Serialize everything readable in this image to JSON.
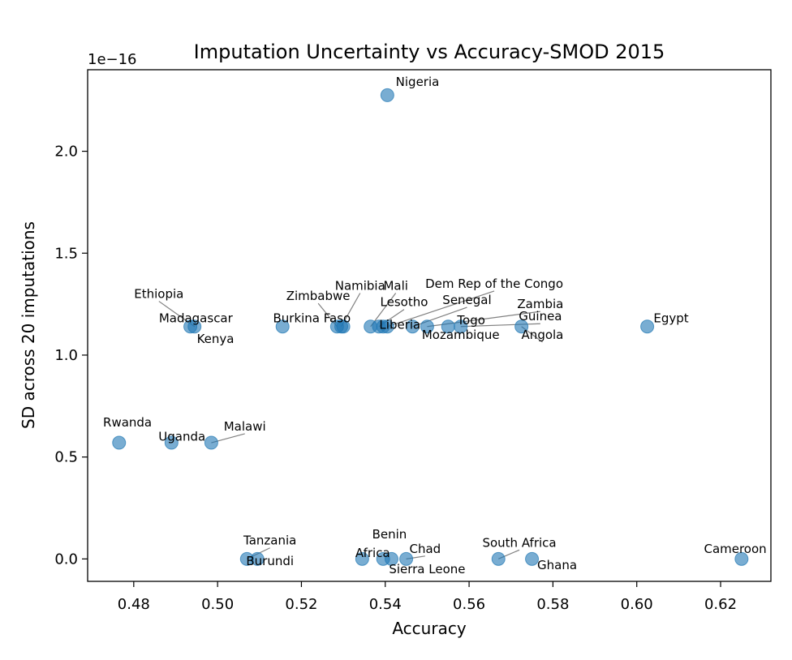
{
  "chart_data": {
    "type": "scatter",
    "title": "Imputation Uncertainty vs Accuracy-SMOD 2015",
    "xlabel": "Accuracy",
    "ylabel": "SD across 20 imputations",
    "y_offset_label": "1e−16",
    "xlim": [
      0.469,
      0.632
    ],
    "ylim": [
      -0.11,
      2.4
    ],
    "grid": false,
    "color": "#1f77b4",
    "xticks": [
      {
        "value": 0.48,
        "label": "0.48"
      },
      {
        "value": 0.5,
        "label": "0.50"
      },
      {
        "value": 0.52,
        "label": "0.52"
      },
      {
        "value": 0.54,
        "label": "0.54"
      },
      {
        "value": 0.56,
        "label": "0.56"
      },
      {
        "value": 0.58,
        "label": "0.58"
      },
      {
        "value": 0.6,
        "label": "0.60"
      },
      {
        "value": 0.62,
        "label": "0.62"
      }
    ],
    "yticks": [
      {
        "value": 0.0,
        "label": "0.0"
      },
      {
        "value": 0.5,
        "label": "0.5"
      },
      {
        "value": 1.0,
        "label": "1.0"
      },
      {
        "value": 1.5,
        "label": "1.5"
      },
      {
        "value": 2.0,
        "label": "2.0"
      }
    ],
    "points": [
      {
        "x": 0.5405,
        "y": 2.275
      },
      {
        "x": 0.4935,
        "y": 1.14
      },
      {
        "x": 0.4945,
        "y": 1.14
      },
      {
        "x": 0.5155,
        "y": 1.14
      },
      {
        "x": 0.5285,
        "y": 1.14
      },
      {
        "x": 0.5295,
        "y": 1.14
      },
      {
        "x": 0.53,
        "y": 1.14
      },
      {
        "x": 0.5365,
        "y": 1.14
      },
      {
        "x": 0.5385,
        "y": 1.14
      },
      {
        "x": 0.5395,
        "y": 1.14
      },
      {
        "x": 0.5405,
        "y": 1.14
      },
      {
        "x": 0.5465,
        "y": 1.14
      },
      {
        "x": 0.55,
        "y": 1.14
      },
      {
        "x": 0.555,
        "y": 1.14
      },
      {
        "x": 0.558,
        "y": 1.14
      },
      {
        "x": 0.5725,
        "y": 1.14
      },
      {
        "x": 0.6025,
        "y": 1.14
      },
      {
        "x": 0.4765,
        "y": 0.57
      },
      {
        "x": 0.489,
        "y": 0.57
      },
      {
        "x": 0.4985,
        "y": 0.57
      },
      {
        "x": 0.507,
        "y": 0.0
      },
      {
        "x": 0.5095,
        "y": 0.0
      },
      {
        "x": 0.5345,
        "y": 0.0
      },
      {
        "x": 0.5395,
        "y": 0.0
      },
      {
        "x": 0.5415,
        "y": 0.0
      },
      {
        "x": 0.545,
        "y": 0.0
      },
      {
        "x": 0.567,
        "y": 0.0
      },
      {
        "x": 0.575,
        "y": 0.0
      },
      {
        "x": 0.625,
        "y": 0.0
      }
    ],
    "labels": [
      {
        "text": "Nigeria",
        "x": 0.5425,
        "y": 2.32,
        "anchor": "start",
        "point": null
      },
      {
        "text": "Ethiopia",
        "x": 0.486,
        "y": 1.28,
        "anchor": "middle",
        "point": [
          0.4945,
          1.14
        ]
      },
      {
        "text": "Madagascar",
        "x": 0.486,
        "y": 1.16,
        "anchor": "start",
        "point": null
      },
      {
        "text": "Kenya",
        "x": 0.4995,
        "y": 1.06,
        "anchor": "middle",
        "point": null
      },
      {
        "text": "Burkina Faso",
        "x": 0.5225,
        "y": 1.16,
        "anchor": "middle",
        "point": null
      },
      {
        "text": "Zimbabwe",
        "x": 0.524,
        "y": 1.27,
        "anchor": "middle",
        "point": [
          0.5285,
          1.14
        ]
      },
      {
        "text": "Namibia",
        "x": 0.534,
        "y": 1.32,
        "anchor": "middle",
        "point": [
          0.5295,
          1.14
        ]
      },
      {
        "text": "Mali",
        "x": 0.5425,
        "y": 1.32,
        "anchor": "middle",
        "point": [
          0.5365,
          1.14
        ]
      },
      {
        "text": "Lesotho",
        "x": 0.5445,
        "y": 1.24,
        "anchor": "middle",
        "point": [
          0.5385,
          1.14
        ]
      },
      {
        "text": "Liberia",
        "x": 0.5435,
        "y": 1.13,
        "anchor": "middle",
        "point": null
      },
      {
        "text": "Dem Rep of the Congo",
        "x": 0.566,
        "y": 1.33,
        "anchor": "middle",
        "point": [
          0.5405,
          1.14
        ]
      },
      {
        "text": "Senegal",
        "x": 0.5595,
        "y": 1.25,
        "anchor": "middle",
        "point": [
          0.5465,
          1.14
        ]
      },
      {
        "text": "Zambia",
        "x": 0.577,
        "y": 1.23,
        "anchor": "middle",
        "point": [
          0.55,
          1.14
        ]
      },
      {
        "text": "Togo",
        "x": 0.5605,
        "y": 1.15,
        "anchor": "middle",
        "point": null
      },
      {
        "text": "Guinea",
        "x": 0.577,
        "y": 1.17,
        "anchor": "middle",
        "point": [
          0.558,
          1.14
        ]
      },
      {
        "text": "Mozambique",
        "x": 0.558,
        "y": 1.08,
        "anchor": "middle",
        "point": null
      },
      {
        "text": "Angola",
        "x": 0.5775,
        "y": 1.08,
        "anchor": "middle",
        "point": [
          0.5725,
          1.14
        ]
      },
      {
        "text": "Egypt",
        "x": 0.604,
        "y": 1.16,
        "anchor": "start",
        "point": null
      },
      {
        "text": "Rwanda",
        "x": 0.4785,
        "y": 0.65,
        "anchor": "middle",
        "point": null
      },
      {
        "text": "Uganda",
        "x": 0.4915,
        "y": 0.58,
        "anchor": "middle",
        "point": null
      },
      {
        "text": "Malawi",
        "x": 0.5065,
        "y": 0.63,
        "anchor": "middle",
        "point": [
          0.4985,
          0.57
        ]
      },
      {
        "text": "Tanzania",
        "x": 0.5125,
        "y": 0.07,
        "anchor": "middle",
        "point": [
          0.507,
          0.0
        ]
      },
      {
        "text": "Burundi",
        "x": 0.5125,
        "y": -0.03,
        "anchor": "middle",
        "point": null
      },
      {
        "text": "Benin",
        "x": 0.541,
        "y": 0.1,
        "anchor": "middle",
        "point": null
      },
      {
        "text": "Africa",
        "x": 0.537,
        "y": 0.01,
        "anchor": "middle",
        "point": null
      },
      {
        "text": "Chad",
        "x": 0.5495,
        "y": 0.03,
        "anchor": "middle",
        "point": [
          0.545,
          0.0
        ]
      },
      {
        "text": "Sierra Leone",
        "x": 0.55,
        "y": -0.07,
        "anchor": "middle",
        "point": null
      },
      {
        "text": "South Africa",
        "x": 0.572,
        "y": 0.06,
        "anchor": "middle",
        "point": [
          0.567,
          0.0
        ]
      },
      {
        "text": "Ghana",
        "x": 0.581,
        "y": -0.05,
        "anchor": "middle",
        "point": null
      },
      {
        "text": "Cameroon",
        "x": 0.6235,
        "y": 0.03,
        "anchor": "middle",
        "point": null
      }
    ]
  }
}
